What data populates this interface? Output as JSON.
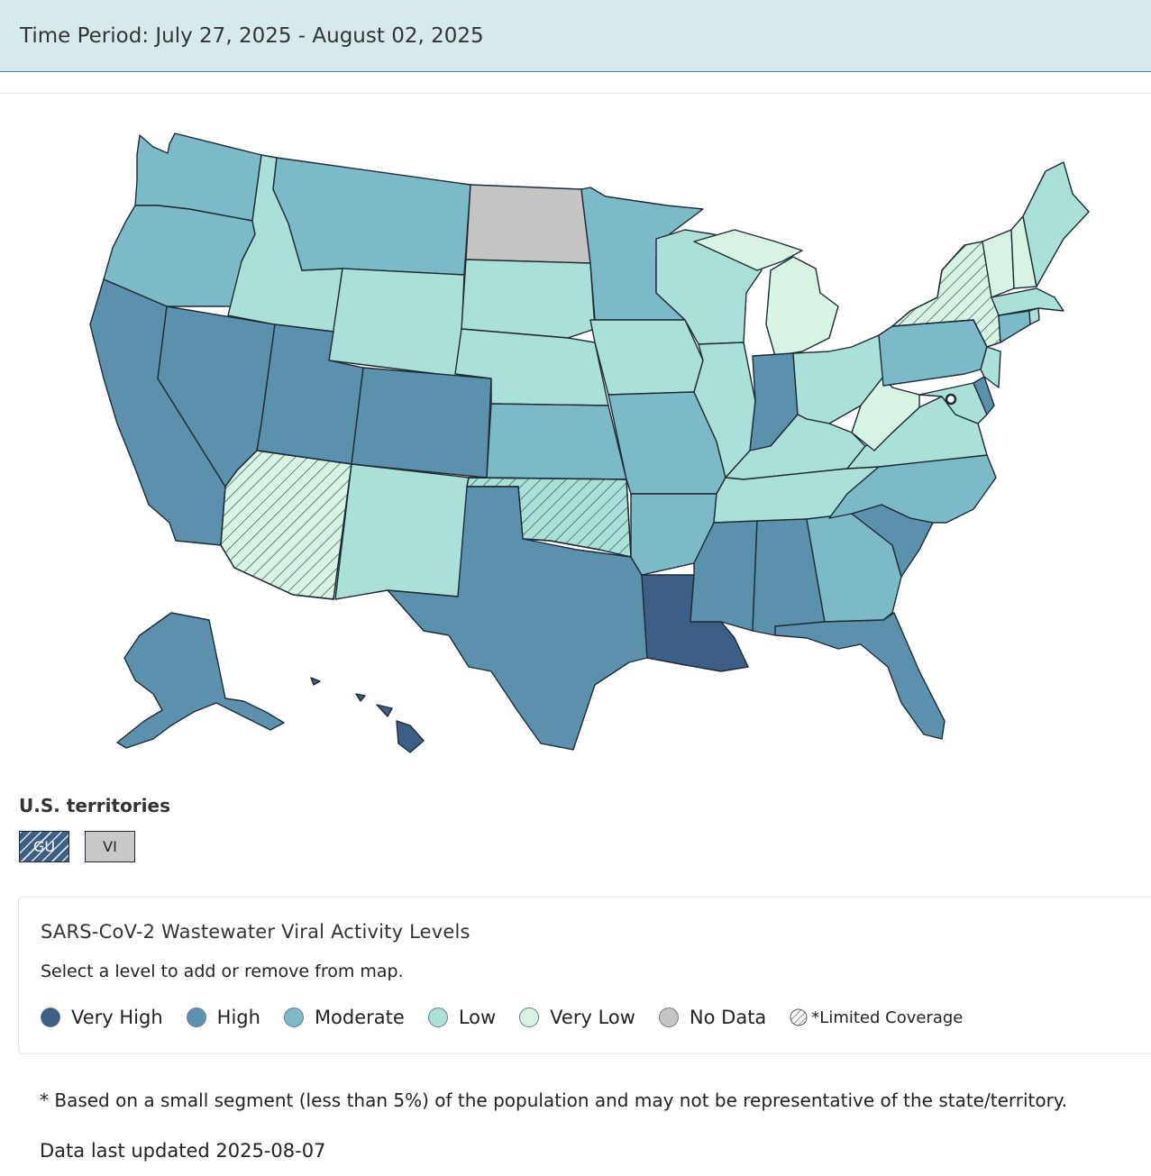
{
  "header": {
    "time_period": "Time Period: July 27, 2025 - August 02, 2025"
  },
  "colors": {
    "very_high": "#3d5f86",
    "high": "#5b91ad",
    "moderate": "#7cbac8",
    "low": "#abe0d8",
    "very_low": "#d6f3e3",
    "no_data": "#c4c4c4",
    "hatch": "#2b4a3a",
    "border": "#1e2a36"
  },
  "map": {
    "states": [
      {
        "code": "WA",
        "level": "moderate",
        "limited": false
      },
      {
        "code": "OR",
        "level": "moderate",
        "limited": false
      },
      {
        "code": "CA",
        "level": "high",
        "limited": false
      },
      {
        "code": "NV",
        "level": "high",
        "limited": false
      },
      {
        "code": "ID",
        "level": "low",
        "limited": false
      },
      {
        "code": "MT",
        "level": "moderate",
        "limited": false
      },
      {
        "code": "WY",
        "level": "low",
        "limited": false
      },
      {
        "code": "UT",
        "level": "high",
        "limited": false
      },
      {
        "code": "AZ",
        "level": "very_low",
        "limited": true
      },
      {
        "code": "CO",
        "level": "high",
        "limited": false
      },
      {
        "code": "NM",
        "level": "low",
        "limited": false
      },
      {
        "code": "ND",
        "level": "no_data",
        "limited": false
      },
      {
        "code": "SD",
        "level": "low",
        "limited": false
      },
      {
        "code": "NE",
        "level": "low",
        "limited": false
      },
      {
        "code": "KS",
        "level": "moderate",
        "limited": false
      },
      {
        "code": "OK",
        "level": "low",
        "limited": true
      },
      {
        "code": "TX",
        "level": "high",
        "limited": false
      },
      {
        "code": "MN",
        "level": "moderate",
        "limited": false
      },
      {
        "code": "IA",
        "level": "low",
        "limited": false
      },
      {
        "code": "MO",
        "level": "moderate",
        "limited": false
      },
      {
        "code": "AR",
        "level": "moderate",
        "limited": false
      },
      {
        "code": "LA",
        "level": "very_high",
        "limited": false
      },
      {
        "code": "WI",
        "level": "low",
        "limited": false
      },
      {
        "code": "IL",
        "level": "low",
        "limited": false
      },
      {
        "code": "MI",
        "level": "very_low",
        "limited": false
      },
      {
        "code": "IN",
        "level": "high",
        "limited": false
      },
      {
        "code": "OH",
        "level": "low",
        "limited": false
      },
      {
        "code": "KY",
        "level": "low",
        "limited": false
      },
      {
        "code": "TN",
        "level": "low",
        "limited": false
      },
      {
        "code": "MS",
        "level": "high",
        "limited": false
      },
      {
        "code": "AL",
        "level": "high",
        "limited": false
      },
      {
        "code": "GA",
        "level": "moderate",
        "limited": false
      },
      {
        "code": "FL",
        "level": "high",
        "limited": false
      },
      {
        "code": "SC",
        "level": "high",
        "limited": false
      },
      {
        "code": "NC",
        "level": "moderate",
        "limited": false
      },
      {
        "code": "VA",
        "level": "low",
        "limited": false
      },
      {
        "code": "WV",
        "level": "very_low",
        "limited": false
      },
      {
        "code": "PA",
        "level": "moderate",
        "limited": false
      },
      {
        "code": "NY",
        "level": "very_low",
        "limited": true
      },
      {
        "code": "VT",
        "level": "very_low",
        "limited": false
      },
      {
        "code": "NH",
        "level": "very_low",
        "limited": false
      },
      {
        "code": "ME",
        "level": "low",
        "limited": false
      },
      {
        "code": "MA",
        "level": "low",
        "limited": false
      },
      {
        "code": "CT",
        "level": "moderate",
        "limited": false
      },
      {
        "code": "RI",
        "level": "low",
        "limited": false
      },
      {
        "code": "NJ",
        "level": "low",
        "limited": false
      },
      {
        "code": "DE",
        "level": "high",
        "limited": false
      },
      {
        "code": "MD",
        "level": "low",
        "limited": false
      },
      {
        "code": "DC",
        "level": "low",
        "limited": false
      },
      {
        "code": "AK",
        "level": "high",
        "limited": false
      },
      {
        "code": "HI",
        "level": "very_high",
        "limited": false
      }
    ]
  },
  "territories": {
    "title": "U.S. territories",
    "items": [
      {
        "code": "GU",
        "label": "GU",
        "level": "very_high",
        "limited": true
      },
      {
        "code": "VI",
        "label": "VI",
        "level": "no_data",
        "limited": false
      }
    ]
  },
  "legend": {
    "title": "SARS-CoV-2 Wastewater Viral Activity Levels",
    "subtitle": "Select a level to add or remove from map.",
    "items": [
      {
        "key": "very_high",
        "label": "Very High"
      },
      {
        "key": "high",
        "label": "High"
      },
      {
        "key": "moderate",
        "label": "Moderate"
      },
      {
        "key": "low",
        "label": "Low"
      },
      {
        "key": "very_low",
        "label": "Very Low"
      },
      {
        "key": "no_data",
        "label": "No Data"
      }
    ],
    "limited_label": "*Limited Coverage"
  },
  "footer": {
    "footnote": "* Based on a small segment (less than 5%) of the population and may not be representative of the state/territory.",
    "updated": "Data last updated 2025-08-07"
  }
}
